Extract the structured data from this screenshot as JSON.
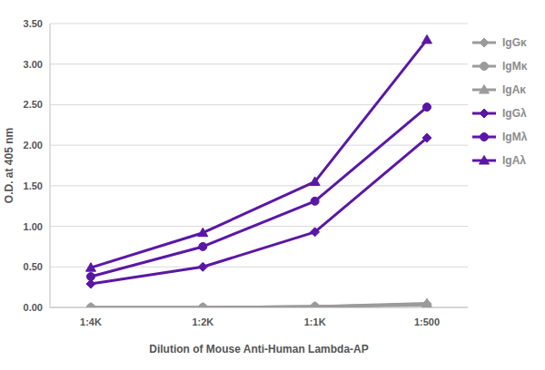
{
  "chart_data": {
    "type": "line",
    "x_label": "Dilution of Mouse Anti-Human Lambda-AP",
    "y_label": "O.D. at 405 nm",
    "categories": [
      "1:4K",
      "1:2K",
      "1:1K",
      "1:500"
    ],
    "ylim": [
      0,
      3.5
    ],
    "yticks": [
      {
        "value": 0,
        "label": "0.00"
      },
      {
        "value": 0.5,
        "label": "0.50"
      },
      {
        "value": 1,
        "label": "1.00"
      },
      {
        "value": 1.5,
        "label": "1.50"
      },
      {
        "value": 2,
        "label": "2.00"
      },
      {
        "value": 2.5,
        "label": "2.50"
      },
      {
        "value": 3,
        "label": "3.00"
      },
      {
        "value": 3.5,
        "label": "3.50"
      }
    ],
    "grid": true,
    "legend": "right",
    "series": [
      {
        "name": "IgGκ",
        "color": "#9b9b9b",
        "marker": "diamond",
        "line_style": "solid",
        "values": [
          0,
          0,
          0.01,
          0.04
        ]
      },
      {
        "name": "IgMκ",
        "color": "#9b9b9b",
        "marker": "circle",
        "line_style": "solid",
        "values": [
          0,
          0,
          0.01,
          0.03
        ]
      },
      {
        "name": "IgAκ",
        "color": "#9b9b9b",
        "marker": "triangle",
        "line_style": "solid",
        "values": [
          0,
          0,
          0.01,
          0.05
        ]
      },
      {
        "name": "IgGλ",
        "color": "#5a17a6",
        "marker": "diamond",
        "line_style": "solid",
        "values": [
          0.29,
          0.5,
          0.93,
          2.09
        ]
      },
      {
        "name": "IgMλ",
        "color": "#5a17a6",
        "marker": "circle",
        "line_style": "solid",
        "values": [
          0.38,
          0.75,
          1.31,
          2.47
        ]
      },
      {
        "name": "IgAλ",
        "color": "#5a17a6",
        "marker": "triangle",
        "line_style": "solid",
        "values": [
          0.49,
          0.92,
          1.55,
          3.3
        ]
      }
    ]
  }
}
